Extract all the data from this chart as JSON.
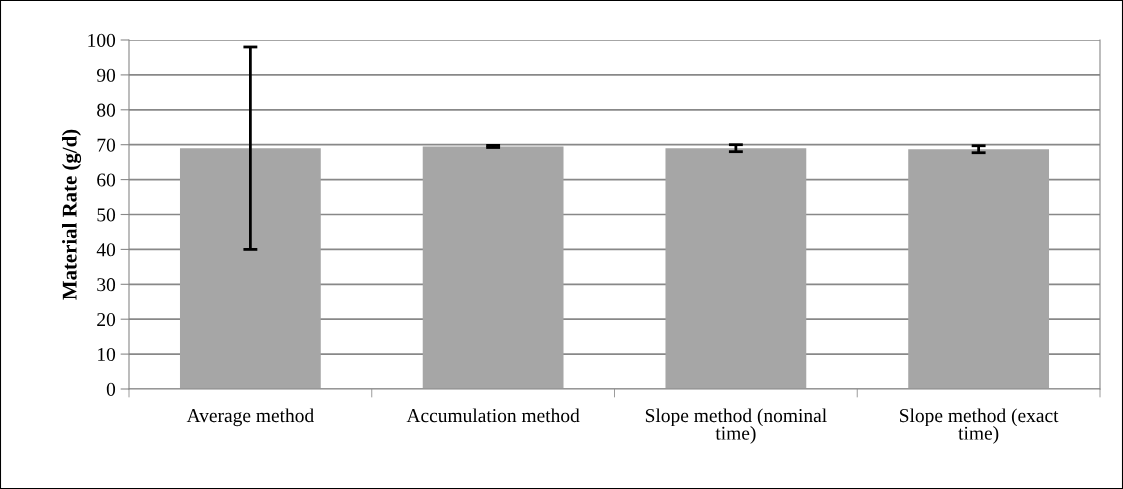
{
  "chart_data": {
    "type": "bar",
    "ylabel": "Material Rate (g/d)",
    "categories": [
      "Average method",
      "Accumulation method",
      "Slope method (nominal time)",
      "Slope method (exact time)"
    ],
    "values": [
      69,
      69.5,
      69,
      68.7
    ],
    "errors": [
      29,
      0.3,
      1,
      1
    ],
    "color": "#a6a6a6",
    "ylim": [
      0,
      100
    ],
    "yticks": [
      0,
      10,
      20,
      30,
      40,
      50,
      60,
      70,
      80,
      90,
      100
    ],
    "grid": "y"
  }
}
